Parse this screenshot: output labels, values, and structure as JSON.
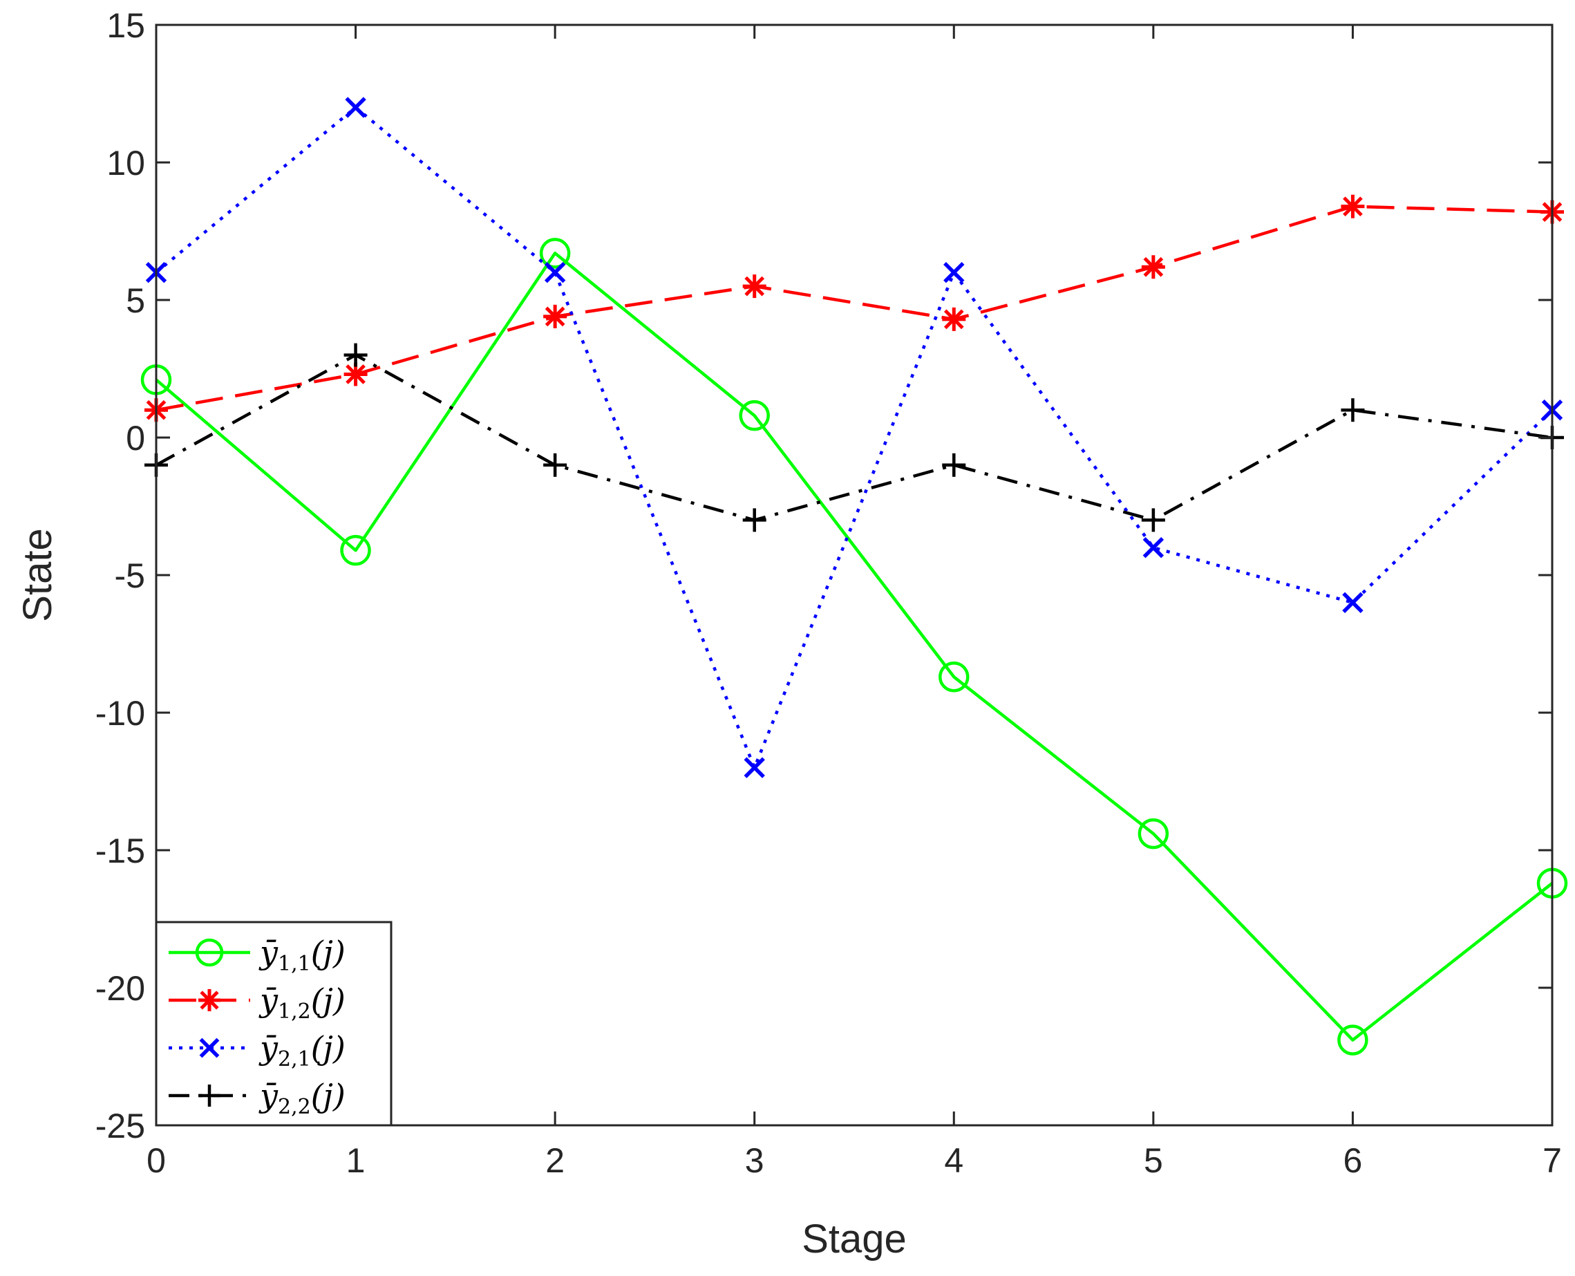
{
  "chart_data": {
    "type": "line",
    "title": "",
    "xlabel": "Stage",
    "ylabel": "State",
    "x": [
      0,
      1,
      2,
      3,
      4,
      5,
      6,
      7
    ],
    "xlim": [
      0,
      7
    ],
    "ylim": [
      -25,
      15
    ],
    "xticks": [
      "0",
      "1",
      "2",
      "3",
      "4",
      "5",
      "6",
      "7"
    ],
    "yticks": [
      "15",
      "10",
      "5",
      "0",
      "-5",
      "-10",
      "-15",
      "-20",
      "-25"
    ],
    "grid": false,
    "legend_position": "bottom-left",
    "series": [
      {
        "name": "ȳ1,1(j)",
        "legend_base": "ȳ",
        "legend_sub": "1,1",
        "legend_arg": "(j)",
        "color": "#00ff00",
        "line_style": "solid",
        "marker": "circle",
        "values": [
          2.1,
          -4.1,
          6.7,
          0.8,
          -8.7,
          -14.4,
          -21.9,
          -16.2
        ]
      },
      {
        "name": "ȳ1,2(j)",
        "legend_base": "ȳ",
        "legend_sub": "1,2",
        "legend_arg": "(j)",
        "color": "#ff0000",
        "line_style": "dashed",
        "marker": "asterisk",
        "values": [
          1.0,
          2.3,
          4.4,
          5.5,
          4.3,
          6.2,
          8.4,
          8.2
        ]
      },
      {
        "name": "ȳ2,1(j)",
        "legend_base": "ȳ",
        "legend_sub": "2,1",
        "legend_arg": "(j)",
        "color": "#0000ff",
        "line_style": "dotted",
        "marker": "x",
        "values": [
          6,
          12,
          6,
          -12,
          6,
          -4,
          -6,
          1
        ]
      },
      {
        "name": "ȳ2,2(j)",
        "legend_base": "ȳ",
        "legend_sub": "2,2",
        "legend_arg": "(j)",
        "color": "#000000",
        "line_style": "dashdot",
        "marker": "plus",
        "values": [
          -1,
          3,
          -1,
          -3,
          -1,
          -3,
          1,
          0
        ]
      }
    ]
  }
}
